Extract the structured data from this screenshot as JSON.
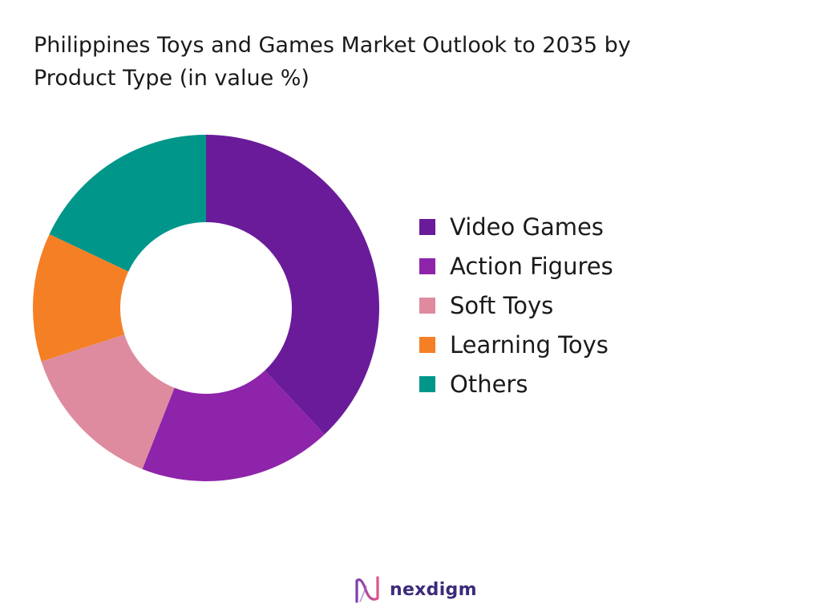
{
  "chart_data": {
    "type": "pie",
    "variant": "donut",
    "title": "Philippines Toys and Games Market Outlook to 2035 by Product Type (in value %)",
    "title_lines": [
      "Philippines Toys and Games Market Outlook to 2035 by",
      "Product Type (in value %)"
    ],
    "categories": [
      "Video Games",
      "Action Figures",
      "Soft Toys",
      "Learning Toys",
      "Others"
    ],
    "values": [
      38,
      18,
      14,
      12,
      18
    ],
    "colors": [
      "#6a1b9a",
      "#8e24aa",
      "#de8ba0",
      "#f57f25",
      "#00968a"
    ],
    "legend_position": "right",
    "data_labels_shown": false
  },
  "brand": {
    "name": "nexdigm",
    "logo_icon": "nexdigm-wave-logo"
  }
}
